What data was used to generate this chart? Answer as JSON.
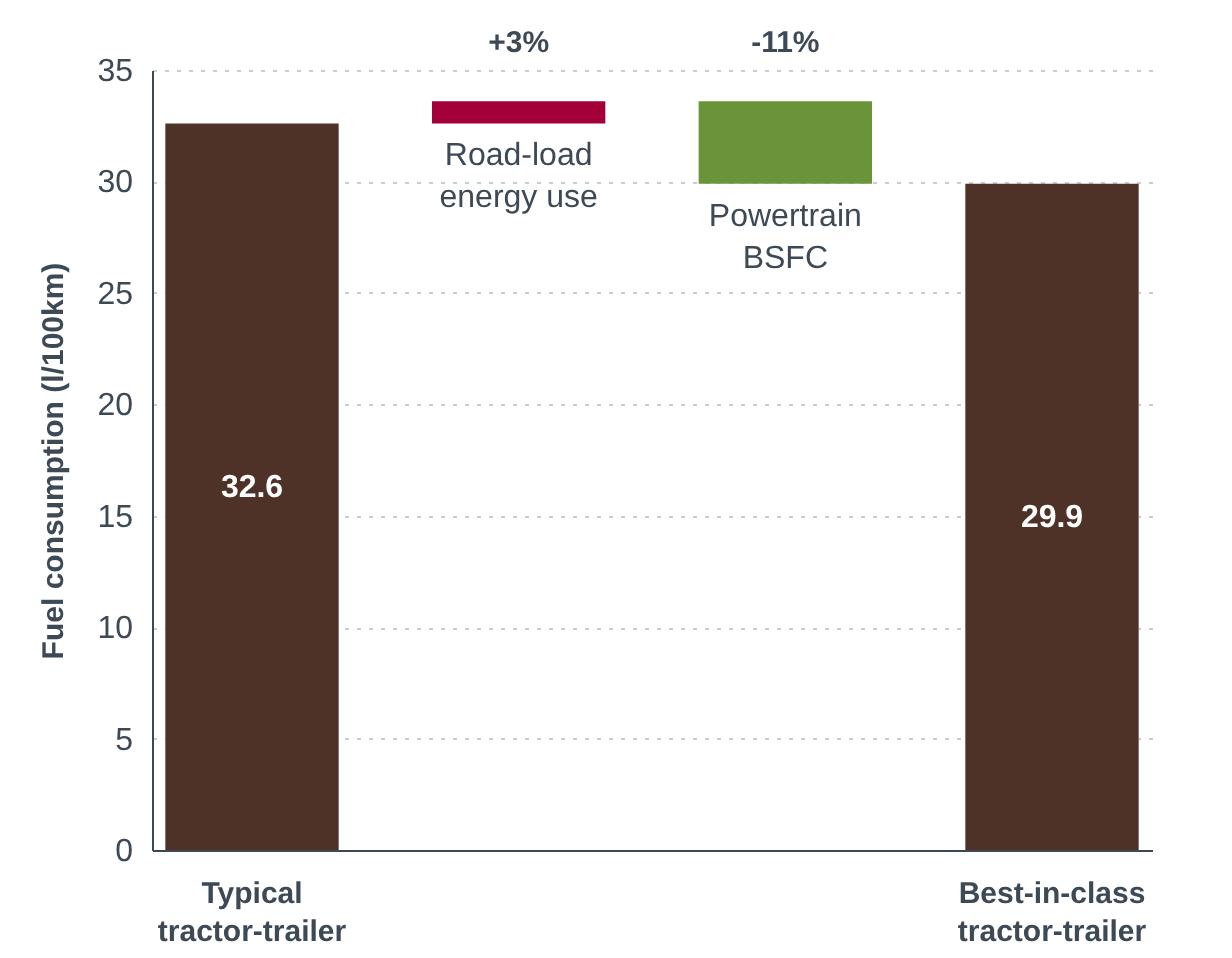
{
  "chart_data": {
    "type": "bar",
    "ylabel": "Fuel consumption (l/100km)",
    "categories": [
      "Typical tractor-trailer",
      "Road-load energy use",
      "Powertrain BSFC",
      "Best-in-class tractor-trailer"
    ],
    "values": [
      32.6,
      1.0,
      -3.7,
      29.9
    ],
    "base": [
      null,
      32.6,
      33.6,
      null
    ],
    "colors": [
      "#4e3228",
      "#a3003a",
      "#6a943a",
      "#4e3228"
    ],
    "value_labels": [
      "32.6",
      null,
      null,
      "29.9"
    ],
    "annotations": [
      "+3%",
      "-11%"
    ],
    "ylim": [
      0,
      35
    ],
    "yticks": [
      0,
      5,
      10,
      15,
      20,
      25,
      30,
      35
    ],
    "grid": "y"
  }
}
